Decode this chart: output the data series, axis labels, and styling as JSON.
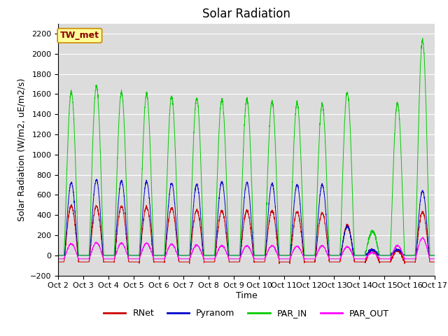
{
  "title": "Solar Radiation",
  "ylabel": "Solar Radiation (W/m2, uE/m2/s)",
  "xlabel": "Time",
  "station_label": "TW_met",
  "ylim": [
    -200,
    2300
  ],
  "yticks": [
    -200,
    0,
    200,
    400,
    600,
    800,
    1000,
    1200,
    1400,
    1600,
    1800,
    2000,
    2200
  ],
  "xtick_labels": [
    "Oct 2",
    "Oct 3",
    "Oct 4",
    "Oct 5",
    "Oct 6",
    "Oct 7",
    "Oct 8",
    "Oct 9",
    "Oct 10",
    "Oct 11",
    "Oct 12",
    "Oct 13",
    "Oct 14",
    "Oct 15",
    "Oct 16",
    "Oct 17"
  ],
  "legend_entries": [
    "RNet",
    "Pyranom",
    "PAR_IN",
    "PAR_OUT"
  ],
  "line_colors": [
    "#cc0000",
    "#0000cc",
    "#00cc00",
    "#ff00ff"
  ],
  "bg_color": "#dcdcdc",
  "fig_bg_color": "#ffffff",
  "n_days": 15,
  "dt": 0.1,
  "rnet_peaks": [
    490,
    490,
    490,
    480,
    470,
    450,
    440,
    445,
    440,
    430,
    420,
    300,
    55,
    50,
    430
  ],
  "pyranom_peaks": [
    720,
    750,
    740,
    730,
    715,
    705,
    730,
    720,
    710,
    700,
    700,
    285,
    55,
    55,
    640
  ],
  "par_in_peaks": [
    1620,
    1680,
    1620,
    1600,
    1570,
    1560,
    1550,
    1550,
    1530,
    1510,
    1500,
    1620,
    240,
    1510,
    2130
  ],
  "par_out_peaks": [
    115,
    125,
    120,
    120,
    110,
    100,
    95,
    95,
    95,
    90,
    95,
    85,
    28,
    95,
    170
  ],
  "rnet_night": -65,
  "par_out_night": -35,
  "title_fontsize": 12,
  "label_fontsize": 9,
  "tick_fontsize": 8,
  "legend_fontsize": 9
}
